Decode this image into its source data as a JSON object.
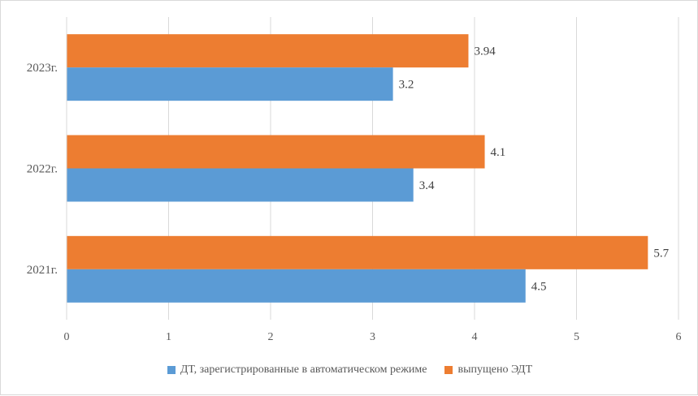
{
  "chart_data": {
    "type": "bar",
    "orientation": "horizontal",
    "categories": [
      "2021г.",
      "2022г.",
      "2023г."
    ],
    "series": [
      {
        "name": "ДТ, зарегистрированные в автоматическом режиме",
        "values": [
          4.5,
          3.4,
          3.2
        ],
        "labels": [
          "4.5",
          "3.4",
          "3.2"
        ],
        "color": "#5b9bd5"
      },
      {
        "name": "выпущено ЭДТ",
        "values": [
          5.7,
          4.1,
          3.94
        ],
        "labels": [
          "5.7",
          "4.1",
          "3.94"
        ],
        "color": "#ed7d31"
      }
    ],
    "x_ticks": [
      "0",
      "1",
      "2",
      "3",
      "4",
      "5",
      "6"
    ],
    "xlim": [
      0,
      6
    ],
    "grid": "vertical",
    "legend_position": "bottom"
  }
}
